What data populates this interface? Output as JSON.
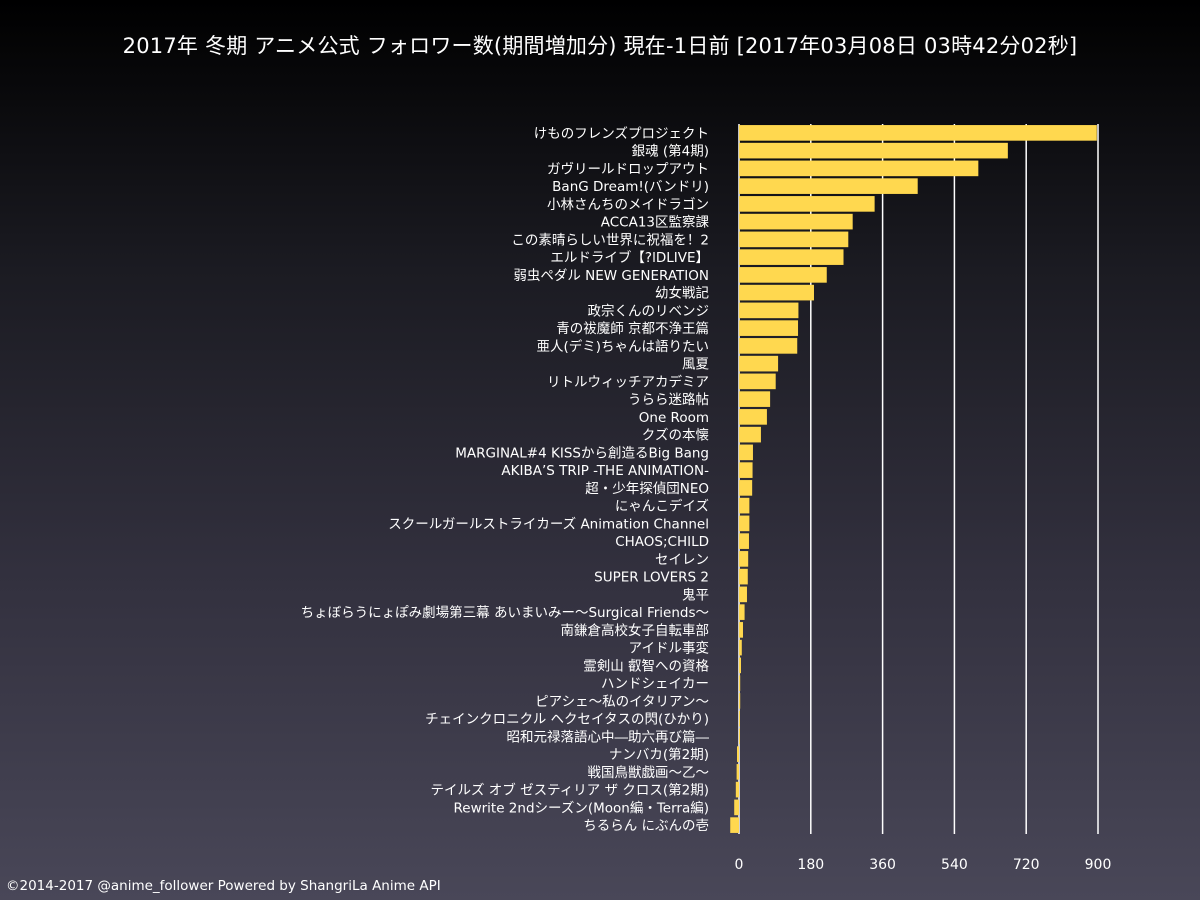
{
  "title": "2017年 冬期 アニメ公式 フォロワー数(期間増加分) 現在-1日前 [2017年03月08日 03時42分02秒]",
  "footer": "©2014-2017 @anime_follower Powered by ShangriLa Anime API",
  "colors": {
    "bar": "#ffd84f",
    "grid": "#ffffff",
    "text": "#ffffff"
  },
  "chart_data": {
    "type": "bar",
    "orientation": "horizontal",
    "title": "2017年 冬期 アニメ公式 フォロワー数(期間増加分) 現在-1日前 [2017年03月08日 03時42分02秒]",
    "xlabel": "",
    "ylabel": "",
    "xlim": [
      0,
      900
    ],
    "xticks": [
      "0",
      "180",
      "360",
      "540",
      "720",
      "900"
    ],
    "grid": true,
    "categories": [
      "けものフレンズプロジェクト",
      "銀魂 (第4期)",
      "ガヴリールドロップアウト",
      "BanG Dream!(バンドリ)",
      "小林さんちのメイドラゴン",
      "ACCA13区監察課",
      "この素晴らしい世界に祝福を！2",
      "エルドライブ【?lDLIVE】",
      "弱虫ペダル NEW GENERATION",
      "幼女戦記",
      "政宗くんのリベンジ",
      "青の祓魔師 京都不浄王篇",
      "亜人(デミ)ちゃんは語りたい",
      "風夏",
      "リトルウィッチアカデミア",
      "うらら迷路帖",
      "One Room",
      "クズの本懐",
      "MARGINAL#4 KISSから創造るBig Bang",
      "AKIBA’S TRIP -THE ANIMATION-",
      "超・少年探偵団NEO",
      "にゃんこデイズ",
      "スクールガールストライカーズ Animation Channel",
      "CHAOS;CHILD",
      "セイレン",
      "SUPER LOVERS 2",
      "鬼平",
      "ちょぼらうにょぽみ劇場第三幕 あいまいみー〜Surgical Friends〜",
      "南鎌倉高校女子自転車部",
      "アイドル事変",
      "霊剣山 叡智への資格",
      "ハンドシェイカー",
      "ピアシェ〜私のイタリアン〜",
      "チェインクロニクル ヘクセイタスの閃(ひかり)",
      "昭和元禄落語心中―助六再び篇―",
      "ナンバカ(第2期)",
      "戦国鳥獣戯画〜乙〜",
      "テイルズ オブ ゼスティリア ザ クロス(第2期)",
      "Rewrite 2ndシーズン(Moon編・Terra編)",
      "ちるらん にぶんの壱"
    ],
    "values": [
      897,
      674,
      600,
      448,
      340,
      285,
      274,
      262,
      220,
      188,
      149,
      148,
      146,
      98,
      92,
      78,
      70,
      55,
      35,
      34,
      33,
      26,
      26,
      25,
      23,
      22,
      20,
      14,
      10,
      7,
      5,
      3,
      3,
      2,
      1,
      -5,
      -6,
      -8,
      -12,
      -22
    ]
  }
}
